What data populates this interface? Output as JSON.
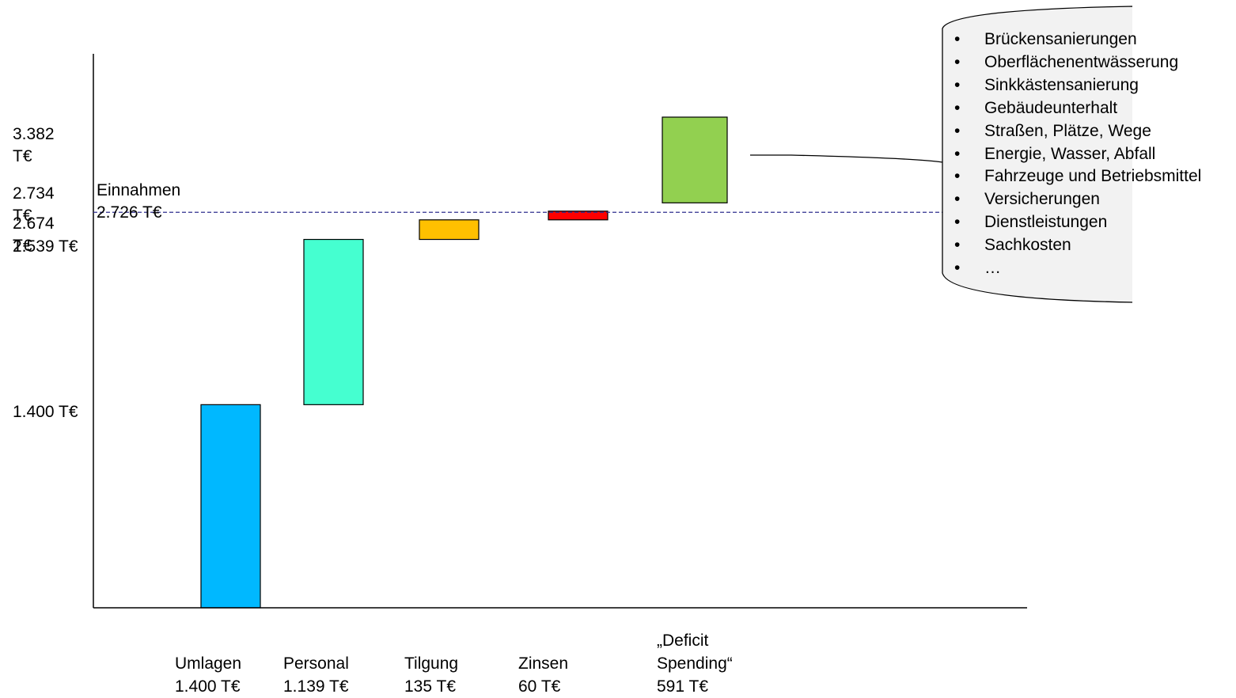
{
  "chart_data": {
    "type": "waterfall",
    "categories": [
      "Umlagen",
      "Personal",
      "Tilgung",
      "Zinsen",
      "„Deficit Spending“"
    ],
    "category_labels": [
      [
        "Umlagen",
        "1.400 T€"
      ],
      [
        "Personal",
        "1.139 T€"
      ],
      [
        "Tilgung",
        "135 T€"
      ],
      [
        "Zinsen",
        "60 T€"
      ],
      [
        "„Deficit",
        "Spending“",
        "591 T€"
      ]
    ],
    "bars": [
      {
        "name": "Umlagen",
        "start": 0,
        "end": 1400,
        "value": 1400,
        "color": "#00B8FF"
      },
      {
        "name": "Personal",
        "start": 1400,
        "end": 2539,
        "value": 1139,
        "color": "#45FFD0"
      },
      {
        "name": "Tilgung",
        "start": 2539,
        "end": 2674,
        "value": 135,
        "color": "#FFC000"
      },
      {
        "name": "Zinsen",
        "start": 2674,
        "end": 2734,
        "value": 60,
        "color": "#FF0000"
      },
      {
        "name": "„Deficit Spending“",
        "start": 2791,
        "end": 3382,
        "value": 591,
        "color": "#92D050"
      }
    ],
    "y_ticks": [
      {
        "value": 3382,
        "label": "3.382\nT€"
      },
      {
        "value": 2734,
        "label": "2.734\nT€"
      },
      {
        "value": 2674,
        "label": "2.674\nT€"
      },
      {
        "value": 2539,
        "label": "2.539 T€"
      },
      {
        "value": 1400,
        "label": "1.400 T€"
      }
    ],
    "reference_line": {
      "value": 2726,
      "label_1": "Einnahmen",
      "label_2": "2.726 T€",
      "color": "#2E2E8F"
    },
    "ylim": [
      0,
      3382
    ]
  },
  "callout": {
    "items": [
      "Brückensanierungen",
      "Oberflächenentwässerung",
      "Sinkkästensanierung",
      "Gebäudeunterhalt",
      "Straßen, Plätze, Wege",
      "Energie, Wasser, Abfall",
      "Fahrzeuge und Betriebsmittel",
      "Versicherungen",
      "Dienstleistungen",
      "Sachkosten",
      "…"
    ],
    "bullet": "•",
    "fill": "#F2F2F2"
  }
}
